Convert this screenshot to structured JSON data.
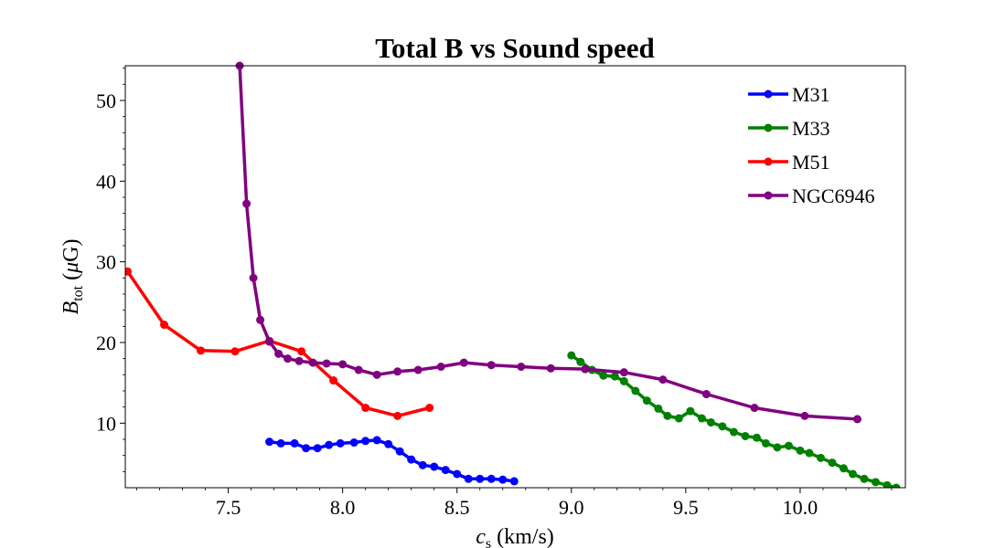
{
  "chart_data": {
    "type": "line",
    "title": "Total B vs Sound speed",
    "xlabel_main": "c",
    "xlabel_sub": "s",
    "xlabel_unit": " (km/s)",
    "ylabel_main": "B",
    "ylabel_sub": "tot",
    "ylabel_unit_open": " (",
    "ylabel_unit_mu": "μ",
    "ylabel_unit_close": "G)",
    "xlim": [
      7.05,
      10.46
    ],
    "ylim": [
      2,
      54.3
    ],
    "xticks": [
      7.5,
      8.0,
      8.5,
      9.0,
      9.5,
      10.0
    ],
    "xtick_labels": [
      "7.5",
      "8.0",
      "8.5",
      "9.0",
      "9.5",
      "10.0"
    ],
    "yticks": [
      10,
      20,
      30,
      40,
      50
    ],
    "ytick_labels": [
      "10",
      "20",
      "30",
      "40",
      "50"
    ],
    "grid": false,
    "legend_position": "top-right",
    "series": [
      {
        "name": "M31",
        "color": "#0000ff",
        "x": [
          7.68,
          7.73,
          7.79,
          7.84,
          7.89,
          7.94,
          7.99,
          8.05,
          8.1,
          8.15,
          8.2,
          8.25,
          8.3,
          8.35,
          8.4,
          8.45,
          8.5,
          8.55,
          8.6,
          8.65,
          8.7,
          8.75
        ],
        "y": [
          7.7,
          7.5,
          7.5,
          6.9,
          6.9,
          7.3,
          7.5,
          7.6,
          7.8,
          7.9,
          7.4,
          6.5,
          5.5,
          4.8,
          4.6,
          4.2,
          3.7,
          3.1,
          3.1,
          3.1,
          3.0,
          2.8
        ]
      },
      {
        "name": "M33",
        "color": "#008000",
        "x": [
          9.0,
          9.04,
          9.09,
          9.14,
          9.19,
          9.23,
          9.28,
          9.33,
          9.38,
          9.42,
          9.47,
          9.52,
          9.57,
          9.61,
          9.66,
          9.71,
          9.76,
          9.81,
          9.85,
          9.9,
          9.95,
          10.0,
          10.04,
          10.09,
          10.14,
          10.19,
          10.23,
          10.28,
          10.33,
          10.38,
          10.42
        ],
        "y": [
          18.4,
          17.6,
          16.6,
          15.9,
          15.8,
          15.2,
          14.0,
          12.8,
          11.8,
          10.9,
          10.6,
          11.5,
          10.6,
          10.1,
          9.6,
          8.9,
          8.4,
          8.2,
          7.5,
          7.0,
          7.2,
          6.6,
          6.3,
          5.7,
          5.1,
          4.4,
          3.7,
          3.1,
          2.7,
          2.3,
          2.0
        ]
      },
      {
        "name": "M51",
        "color": "#ff0000",
        "x": [
          7.06,
          7.22,
          7.38,
          7.53,
          7.68,
          7.82,
          7.96,
          8.1,
          8.24,
          8.38
        ],
        "y": [
          28.8,
          22.2,
          19.0,
          18.9,
          20.2,
          18.9,
          15.3,
          11.9,
          10.9,
          11.9
        ]
      },
      {
        "name": "NGC6946",
        "color": "#800080",
        "x": [
          7.55,
          7.58,
          7.61,
          7.64,
          7.68,
          7.72,
          7.76,
          7.81,
          7.87,
          7.93,
          8.0,
          8.07,
          8.15,
          8.24,
          8.33,
          8.43,
          8.53,
          8.65,
          8.78,
          8.91,
          9.06,
          9.23,
          9.4,
          9.59,
          9.8,
          10.02,
          10.25
        ],
        "y": [
          54.3,
          37.2,
          28.0,
          22.8,
          20.1,
          18.6,
          18.0,
          17.7,
          17.5,
          17.4,
          17.3,
          16.6,
          16.0,
          16.4,
          16.6,
          17.0,
          17.5,
          17.2,
          17.0,
          16.8,
          16.7,
          16.3,
          15.4,
          13.6,
          11.9,
          10.9,
          10.5
        ]
      }
    ]
  }
}
